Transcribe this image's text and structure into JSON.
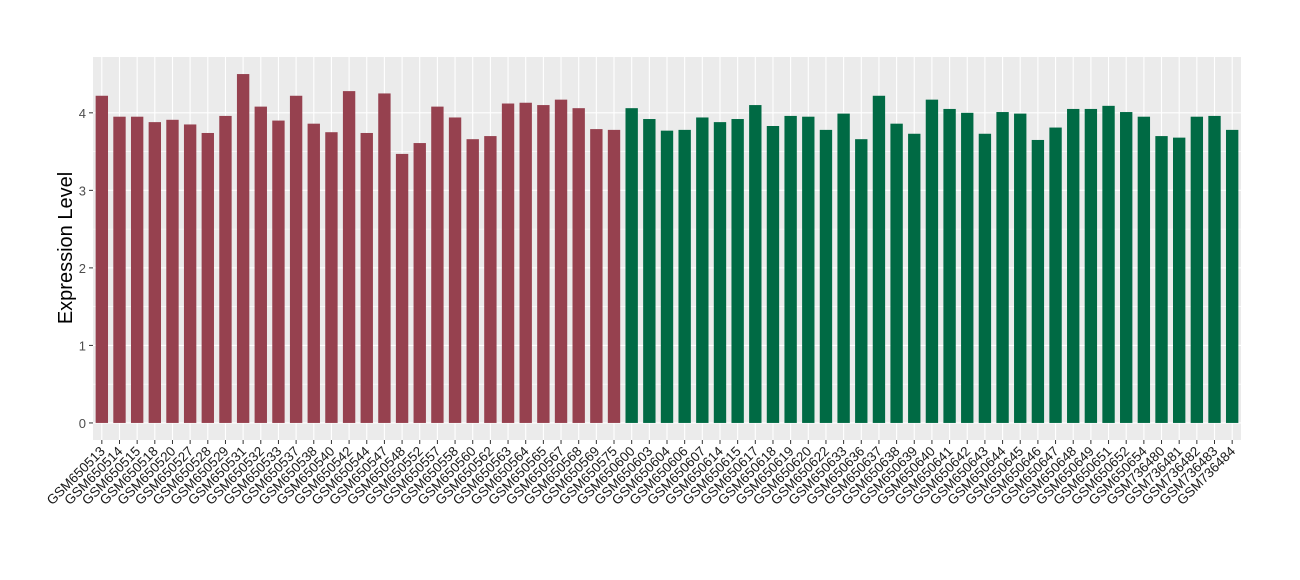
{
  "chart_data": {
    "type": "bar",
    "y_label": "Expression Level",
    "categories": [
      "GSM650513",
      "GSM650514",
      "GSM650515",
      "GSM650518",
      "GSM650520",
      "GSM650527",
      "GSM650528",
      "GSM650529",
      "GSM650531",
      "GSM650532",
      "GSM650533",
      "GSM650537",
      "GSM650538",
      "GSM650540",
      "GSM650542",
      "GSM650544",
      "GSM650547",
      "GSM650548",
      "GSM650552",
      "GSM650557",
      "GSM650558",
      "GSM650560",
      "GSM650562",
      "GSM650563",
      "GSM650564",
      "GSM650565",
      "GSM650567",
      "GSM650568",
      "GSM650569",
      "GSM650575",
      "GSM650600",
      "GSM650603",
      "GSM650604",
      "GSM650606",
      "GSM650607",
      "GSM650614",
      "GSM650615",
      "GSM650617",
      "GSM650618",
      "GSM650619",
      "GSM650620",
      "GSM650622",
      "GSM650633",
      "GSM650636",
      "GSM650637",
      "GSM650638",
      "GSM650639",
      "GSM650640",
      "GSM650641",
      "GSM650642",
      "GSM650643",
      "GSM650644",
      "GSM650645",
      "GSM650646",
      "GSM650647",
      "GSM650648",
      "GSM650649",
      "GSM650651",
      "GSM650652",
      "GSM650654",
      "GSM736480",
      "GSM736481",
      "GSM736482",
      "GSM736483",
      "GSM736484"
    ],
    "series": [
      {
        "color": "#96414f",
        "values": [
          4.22,
          3.95,
          3.95,
          3.88,
          3.91,
          3.85,
          3.74,
          3.96,
          4.5,
          4.08,
          3.9,
          4.22,
          3.86,
          3.75,
          4.28,
          3.74,
          4.25,
          3.47,
          3.61,
          4.08,
          3.94,
          3.66,
          3.7,
          4.12,
          4.13,
          4.1,
          4.17,
          4.06,
          3.79,
          3.78,
          null,
          null,
          null,
          null,
          null,
          null,
          null,
          null,
          null,
          null,
          null,
          null,
          null,
          null,
          null,
          null,
          null,
          null,
          null,
          null,
          null,
          null,
          null,
          null,
          null,
          null,
          null,
          null,
          null,
          null,
          null,
          null,
          null,
          null,
          null
        ]
      },
      {
        "color": "#006a44",
        "values": [
          null,
          null,
          null,
          null,
          null,
          null,
          null,
          null,
          null,
          null,
          null,
          null,
          null,
          null,
          null,
          null,
          null,
          null,
          null,
          null,
          null,
          null,
          null,
          null,
          null,
          null,
          null,
          null,
          null,
          null,
          4.06,
          3.92,
          3.77,
          3.78,
          3.94,
          3.88,
          3.92,
          4.1,
          3.83,
          3.96,
          3.95,
          3.78,
          3.99,
          3.66,
          4.22,
          3.86,
          3.73,
          4.17,
          4.05,
          4.0,
          3.73,
          4.01,
          3.99,
          3.65,
          3.81,
          4.05,
          4.05,
          4.09,
          4.01,
          3.95,
          3.7,
          3.68,
          3.95,
          3.96,
          3.78
        ]
      }
    ],
    "ylim": [
      -0.22,
      4.72
    ],
    "yticks": [
      0,
      1,
      2,
      3,
      4
    ],
    "grid": true
  }
}
